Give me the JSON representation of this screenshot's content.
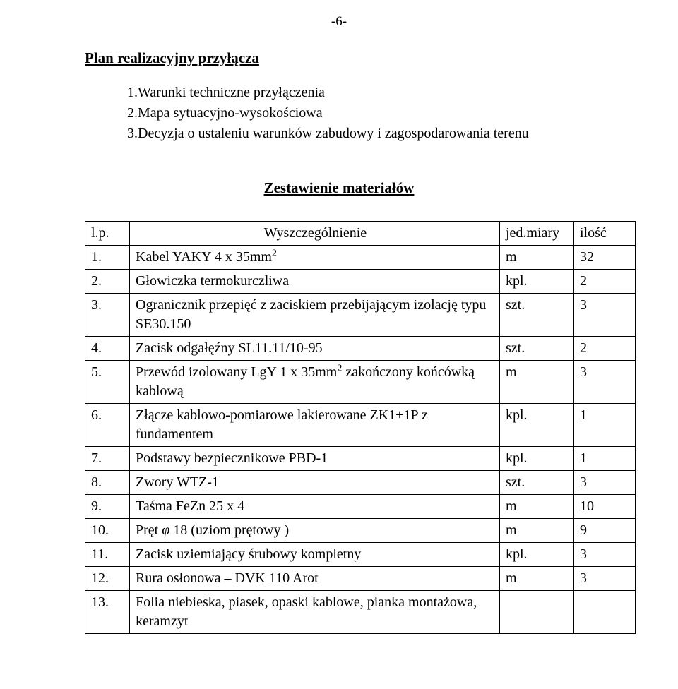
{
  "page_marker": "-6-",
  "section_title": "Plan realizacyjny przyłącza",
  "list_items": [
    "1.Warunki techniczne przyłączenia",
    "2.Mapa sytuacyjno-wysokościowa",
    "3.Decyzja o ustaleniu warunków zabudowy i zagospodarowania terenu"
  ],
  "table_title": "Zestawienie materiałów",
  "table": {
    "columns": [
      "l.p.",
      "Wyszczególnienie",
      "jed.miary",
      "ilość"
    ],
    "rows": [
      {
        "lp": "1.",
        "desc": "Kabel YAKY 4 x 35mm",
        "sup": "2",
        "unit": "m",
        "qty": "32"
      },
      {
        "lp": "2.",
        "desc": "Głowiczka termokurczliwa",
        "unit": "kpl.",
        "qty": "2"
      },
      {
        "lp": "3.",
        "desc": "Ogranicznik przepięć z zaciskiem przebijającym izolację typu SE30.150",
        "unit": "szt.",
        "qty": "3"
      },
      {
        "lp": "4.",
        "desc": "Zacisk odgałęźny SL11.11/10-95",
        "unit": "szt.",
        "qty": "2"
      },
      {
        "lp": "5.",
        "desc_pre": "Przewód izolowany LgY 1 x 35mm",
        "sup": "2",
        "desc_post": " zakończony końcówką kablową",
        "unit": "m",
        "qty": "3"
      },
      {
        "lp": "6.",
        "desc": "Złącze kablowo-pomiarowe lakierowane ZK1+1P z fundamentem",
        "unit": "kpl.",
        "qty": "1"
      },
      {
        "lp": "7.",
        "desc": "Podstawy bezpiecznikowe PBD-1",
        "unit": "kpl.",
        "qty": "1"
      },
      {
        "lp": "8.",
        "desc": "Zwory WTZ-1",
        "unit": "szt.",
        "qty": "3"
      },
      {
        "lp": "9.",
        "desc": "Taśma FeZn 25 x 4",
        "unit": "m",
        "qty": "10"
      },
      {
        "lp": "10.",
        "desc_pre": "Pręt ",
        "phi": "φ",
        "desc_post": " 18 (uziom prętowy )",
        "unit": "m",
        "qty": "9"
      },
      {
        "lp": "11.",
        "desc": "Zacisk uziemiający śrubowy kompletny",
        "unit": "kpl.",
        "qty": "3"
      },
      {
        "lp": "12.",
        "desc": "Rura osłonowa – DVK 110 Arot",
        "unit": "m",
        "qty": "3"
      },
      {
        "lp": "13.",
        "desc": "Folia niebieska, piasek, opaski kablowe, pianka montażowa, keramzyt",
        "unit": "",
        "qty": ""
      }
    ]
  }
}
